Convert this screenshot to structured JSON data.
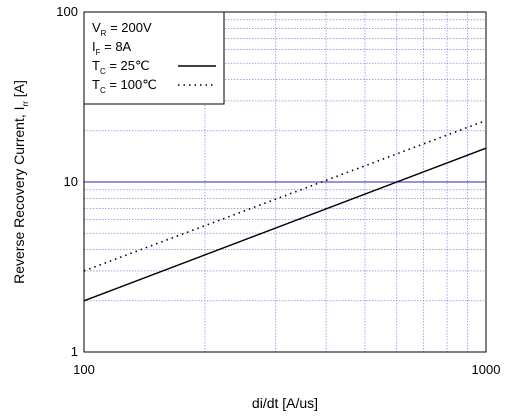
{
  "chart_data": {
    "type": "line",
    "xscale": "log",
    "yscale": "log",
    "xlim": [
      100,
      1000
    ],
    "ylim": [
      1,
      100
    ],
    "xlabel": "di/dt [A/us]",
    "ylabel_main": "Reverse Recovery Current, I",
    "ylabel_sub": "rr",
    "ylabel_unit": " [A]",
    "x_ticks": [
      100,
      1000
    ],
    "x_tick_labels": [
      "100",
      "1000"
    ],
    "y_ticks": [
      1,
      10,
      100
    ],
    "y_tick_labels": [
      "1",
      "10",
      "100"
    ],
    "grid": true,
    "grid_color": "#6b6bd6",
    "major_grid_color": "#2a2ab0",
    "legend_position": "top-left",
    "conditions": [
      {
        "main": "V",
        "sub": "R",
        "rest": " = 200V"
      },
      {
        "main": "I",
        "sub": "F",
        "rest": " = 8A"
      }
    ],
    "series": [
      {
        "legend_main": "T",
        "legend_sub": "C",
        "legend_rest": " =   25℃",
        "style": "solid",
        "x": [
          100,
          1000
        ],
        "y": [
          2.0,
          15.8
        ]
      },
      {
        "legend_main": "T",
        "legend_sub": "C",
        "legend_rest": " = 100℃",
        "style": "dotted",
        "x": [
          100,
          1000
        ],
        "y": [
          3.0,
          23.0
        ]
      }
    ]
  }
}
